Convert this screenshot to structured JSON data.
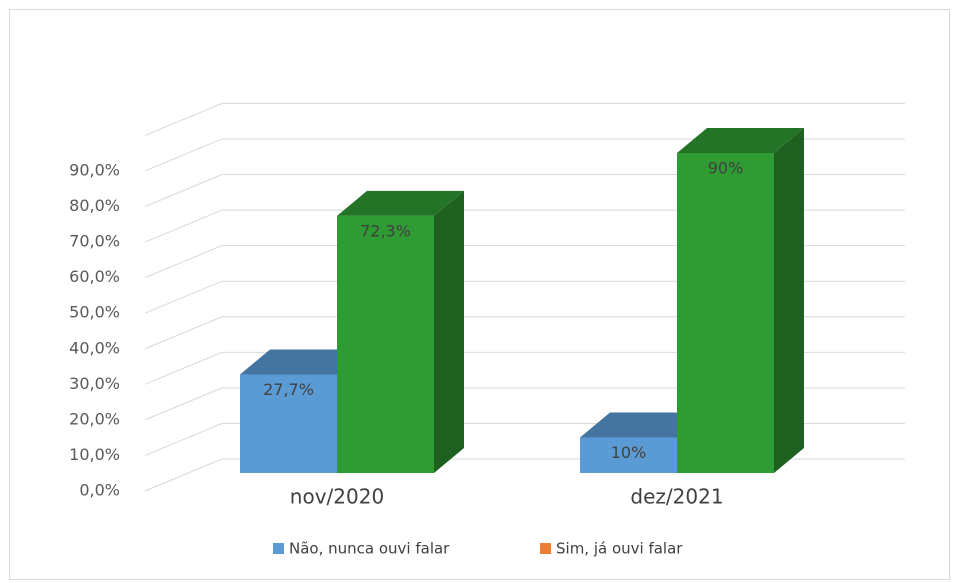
{
  "chart_data": {
    "type": "bar3d",
    "categories": [
      "nov/2020",
      "dez/2021"
    ],
    "series": [
      {
        "name": "Não, nunca ouvi falar",
        "color": "#5b9bd5",
        "values": [
          27.7,
          10
        ],
        "value_labels": [
          "27,7%",
          "10%"
        ]
      },
      {
        "name": "Sim, já ouvi falar",
        "color": "#2e9b33",
        "legend_color": "#ed7d31",
        "values": [
          72.3,
          90
        ],
        "value_labels": [
          "72,3%",
          "90%"
        ]
      }
    ],
    "ylim": [
      0,
      100
    ],
    "yticks": [
      {
        "value": 0,
        "label": "0,0%"
      },
      {
        "value": 10,
        "label": "10,0%"
      },
      {
        "value": 20,
        "label": "20,0%"
      },
      {
        "value": 30,
        "label": "30,0%"
      },
      {
        "value": 40,
        "label": "40,0%"
      },
      {
        "value": 50,
        "label": "50,0%"
      },
      {
        "value": 60,
        "label": "60,0%"
      },
      {
        "value": 70,
        "label": "70,0%"
      },
      {
        "value": 80,
        "label": "80,0%"
      },
      {
        "value": 90,
        "label": "90,0%"
      }
    ],
    "grid": true,
    "legend": "bottom"
  }
}
